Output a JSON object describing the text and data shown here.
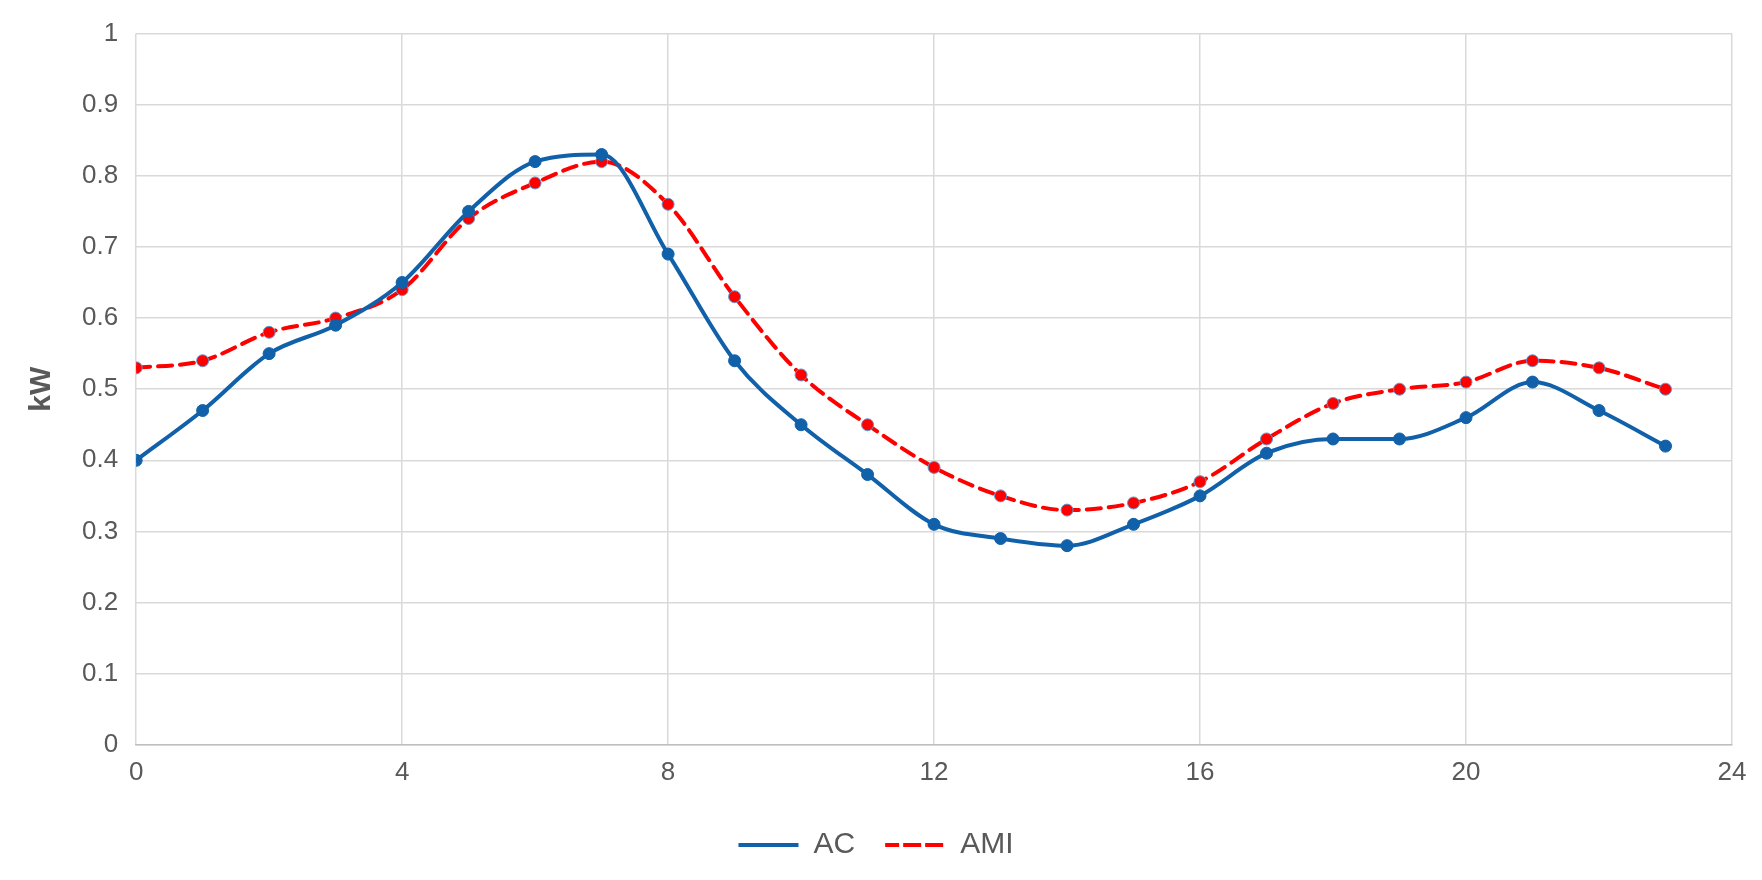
{
  "chart_data": {
    "type": "line",
    "ylabel": "kW",
    "x": [
      0,
      1,
      2,
      3,
      4,
      5,
      6,
      7,
      8,
      9,
      10,
      11,
      12,
      13,
      14,
      15,
      16,
      17,
      18,
      19,
      20,
      21,
      22,
      23
    ],
    "series": [
      {
        "name": "AC",
        "color": "#1060aa",
        "line_style": "solid",
        "values": [
          0.4,
          0.47,
          0.55,
          0.59,
          0.65,
          0.75,
          0.82,
          0.83,
          0.69,
          0.54,
          0.45,
          0.38,
          0.31,
          0.29,
          0.28,
          0.31,
          0.35,
          0.41,
          0.43,
          0.43,
          0.46,
          0.51,
          0.47,
          0.42
        ]
      },
      {
        "name": "AMI",
        "color": "#ff0000",
        "line_style": "dashed",
        "values": [
          0.53,
          0.54,
          0.58,
          0.6,
          0.64,
          0.74,
          0.79,
          0.82,
          0.76,
          0.63,
          0.52,
          0.45,
          0.39,
          0.35,
          0.33,
          0.34,
          0.37,
          0.43,
          0.48,
          0.5,
          0.51,
          0.54,
          0.53,
          0.5
        ]
      }
    ],
    "xlim": [
      0,
      24
    ],
    "xticks": [
      0,
      4,
      8,
      12,
      16,
      20,
      24
    ],
    "ylim": [
      0,
      1
    ],
    "yticks": [
      0,
      0.1,
      0.2,
      0.3,
      0.4,
      0.5,
      0.6,
      0.7,
      0.8,
      0.9,
      1
    ],
    "grid": true,
    "legend": "bottom",
    "marker": "circle"
  }
}
